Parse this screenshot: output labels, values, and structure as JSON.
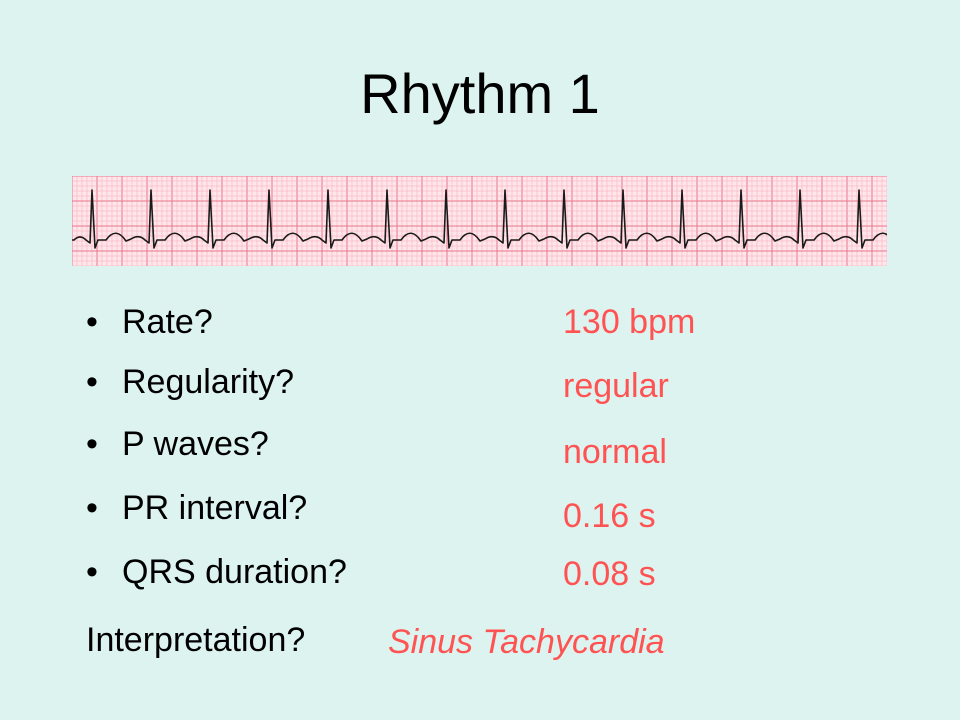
{
  "slide": {
    "title": "Rhythm 1"
  },
  "ecg_strip": {
    "paper_color": "#ffe6ea",
    "minor_grid_color": "#f7a9b7",
    "major_grid_color": "#e8778c",
    "trace_color": "#1a1a1a",
    "rate_bpm": 130
  },
  "questions": [
    {
      "label": "Rate?",
      "answer": "130 bpm"
    },
    {
      "label": "Regularity?",
      "answer": "regular"
    },
    {
      "label": "P waves?",
      "answer": "normal"
    },
    {
      "label": "PR interval?",
      "answer": "0.16 s"
    },
    {
      "label": "QRS duration?",
      "answer": "0.08 s"
    }
  ],
  "interpretation": {
    "label": "Interpretation?",
    "answer": "Sinus Tachycardia"
  },
  "colors": {
    "background": "#dcf3ef",
    "answer": "#ff5353",
    "text": "#000000"
  }
}
